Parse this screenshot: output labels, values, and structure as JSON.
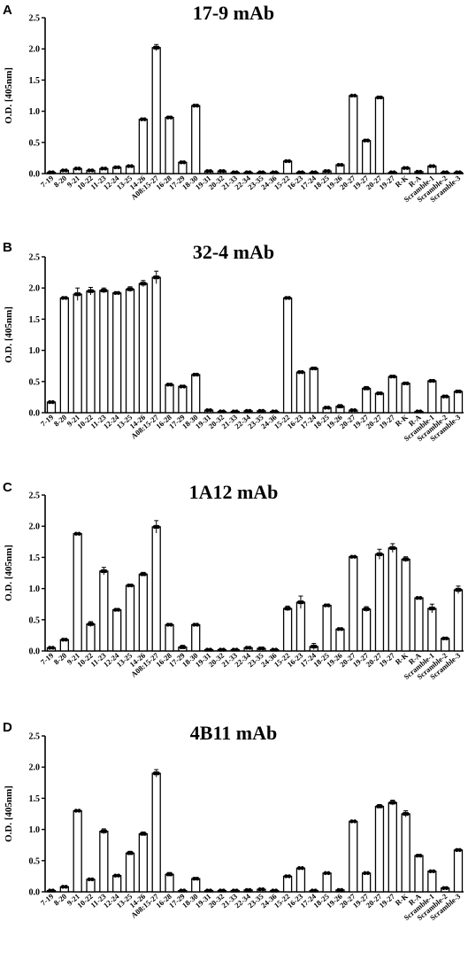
{
  "chart_data": [
    {
      "type": "bar",
      "panel": "A",
      "title": "17-9 mAb",
      "ylabel": "O.D. [405nm]",
      "ylim": [
        0,
        2.5
      ],
      "yticks": [
        "0.0",
        "0.5",
        "1.0",
        "1.5",
        "2.0",
        "2.5"
      ],
      "categories": [
        "7-19",
        "8-20",
        "9-21",
        "10-22",
        "11-23",
        "12-24",
        "13-25",
        "14-26",
        "A08:15-27",
        "16-28",
        "17-29",
        "18-30",
        "19-31",
        "20-32",
        "21-33",
        "22-34",
        "23-35",
        "24-36",
        "15-22",
        "16-23",
        "17-24",
        "18-25",
        "19-26",
        "20-27",
        "19-27",
        "20-27",
        "19-27",
        "R-K",
        "R-A",
        "Scramble-1",
        "Scramble-2",
        "Scramble-3"
      ],
      "values": [
        0.02,
        0.05,
        0.08,
        0.05,
        0.08,
        0.1,
        0.12,
        0.87,
        2.02,
        0.9,
        0.18,
        1.09,
        0.04,
        0.04,
        0.02,
        0.02,
        0.02,
        0.02,
        0.2,
        0.02,
        0.02,
        0.04,
        0.14,
        1.25,
        0.53,
        1.22,
        0.02,
        0.09,
        0.03,
        0.12,
        0.02,
        0.02
      ],
      "errors": [
        0.01,
        0.01,
        0.01,
        0.01,
        0.01,
        0.01,
        0.01,
        0.02,
        0.05,
        0.02,
        0.02,
        0.02,
        0.01,
        0.01,
        0.01,
        0.01,
        0.01,
        0.01,
        0.01,
        0.01,
        0.01,
        0.01,
        0.01,
        0.01,
        0.02,
        0.02,
        0.01,
        0.01,
        0.01,
        0.01,
        0.01,
        0.01
      ],
      "grid": false,
      "legend": "none"
    },
    {
      "type": "bar",
      "panel": "B",
      "title": "32-4 mAb",
      "ylabel": "O.D. [405nm]",
      "ylim": [
        0,
        2.5
      ],
      "yticks": [
        "0.0",
        "0.5",
        "1.0",
        "1.5",
        "2.0",
        "2.5"
      ],
      "categories": [
        "7-19",
        "8-20",
        "9-21",
        "10-22",
        "11-23",
        "12-24",
        "13-25",
        "14-26",
        "A08:15-27",
        "16-28",
        "17-29",
        "18-30",
        "19-31",
        "20-32",
        "21-33",
        "22-34",
        "23-35",
        "24-36",
        "15-22",
        "16-23",
        "17-24",
        "18-25",
        "19-26",
        "20-27",
        "19-27",
        "20-27",
        "19-27",
        "R-K",
        "R-A",
        "Scramble-1",
        "Scramble-2",
        "Scramble-3"
      ],
      "values": [
        0.17,
        1.84,
        1.9,
        1.95,
        1.96,
        1.92,
        1.98,
        2.07,
        2.17,
        0.45,
        0.42,
        0.61,
        0.04,
        0.02,
        0.02,
        0.03,
        0.03,
        0.02,
        1.84,
        0.65,
        0.71,
        0.08,
        0.1,
        0.04,
        0.39,
        0.31,
        0.58,
        0.47,
        0.02,
        0.51,
        0.26,
        0.34
      ],
      "errors": [
        0.01,
        0.02,
        0.1,
        0.06,
        0.04,
        0.02,
        0.04,
        0.05,
        0.1,
        0.02,
        0.02,
        0.02,
        0.01,
        0.01,
        0.01,
        0.01,
        0.01,
        0.01,
        0.02,
        0.02,
        0.02,
        0.02,
        0.03,
        0.01,
        0.03,
        0.02,
        0.02,
        0.02,
        0.01,
        0.02,
        0.02,
        0.02
      ],
      "grid": false,
      "legend": "none"
    },
    {
      "type": "bar",
      "panel": "C",
      "title": "1A12 mAb",
      "ylabel": "O.D. [405nm]",
      "ylim": [
        0,
        2.5
      ],
      "yticks": [
        "0.0",
        "0.5",
        "1.0",
        "1.5",
        "2.0",
        "2.5"
      ],
      "categories": [
        "7-19",
        "8-20",
        "9-21",
        "10-22",
        "11-23",
        "12-24",
        "13-25",
        "14-26",
        "A08:15-27",
        "16-28",
        "17-29",
        "18-30",
        "19-31",
        "20-32",
        "21-33",
        "22-34",
        "23-35",
        "24-36",
        "15-22",
        "16-23",
        "17-24",
        "18-25",
        "19-26",
        "20-27",
        "19-27",
        "20-27",
        "19-27",
        "R-K",
        "R-A",
        "Scramble-1",
        "Scramble-2",
        "Scramble-3"
      ],
      "values": [
        0.05,
        0.18,
        1.88,
        0.43,
        1.28,
        0.66,
        1.05,
        1.23,
        1.99,
        0.42,
        0.06,
        0.42,
        0.02,
        0.02,
        0.02,
        0.05,
        0.04,
        0.02,
        0.68,
        0.78,
        0.07,
        0.73,
        0.35,
        1.51,
        0.67,
        1.55,
        1.65,
        1.47,
        0.85,
        0.68,
        0.2,
        0.98
      ],
      "errors": [
        0.01,
        0.02,
        0.01,
        0.04,
        0.06,
        0.02,
        0.02,
        0.03,
        0.1,
        0.02,
        0.03,
        0.02,
        0.01,
        0.01,
        0.01,
        0.02,
        0.02,
        0.01,
        0.04,
        0.1,
        0.05,
        0.02,
        0.02,
        0.01,
        0.04,
        0.08,
        0.07,
        0.04,
        0.01,
        0.07,
        0.02,
        0.06
      ],
      "grid": false,
      "legend": "none"
    },
    {
      "type": "bar",
      "panel": "D",
      "title": "4B11 mAb",
      "ylabel": "O.D. [405nm]",
      "ylim": [
        0,
        2.5
      ],
      "yticks": [
        "0.0",
        "0.5",
        "1.0",
        "1.5",
        "2.0",
        "2.5"
      ],
      "categories": [
        "7-19",
        "8-20",
        "9-21",
        "10-22",
        "11-23",
        "12-24",
        "13-25",
        "14-26",
        "A08:15-27",
        "16-28",
        "17-29",
        "18-30",
        "19-31",
        "20-32",
        "21-33",
        "22-34",
        "23-35",
        "24-36",
        "15-22",
        "16-23",
        "17-24",
        "18-25",
        "19-26",
        "20-27",
        "19-27",
        "20-27",
        "19-27",
        "R-K",
        "R-A",
        "Scramble-1",
        "Scramble-2",
        "Scramble-3"
      ],
      "values": [
        0.02,
        0.08,
        1.3,
        0.2,
        0.97,
        0.26,
        0.62,
        0.93,
        1.9,
        0.28,
        0.02,
        0.21,
        0.02,
        0.02,
        0.02,
        0.03,
        0.04,
        0.02,
        0.25,
        0.38,
        0.02,
        0.3,
        0.03,
        1.13,
        0.3,
        1.37,
        1.43,
        1.25,
        0.58,
        0.33,
        0.06,
        0.67
      ],
      "errors": [
        0.01,
        0.01,
        0.01,
        0.01,
        0.04,
        0.01,
        0.03,
        0.03,
        0.06,
        0.03,
        0.01,
        0.02,
        0.01,
        0.01,
        0.01,
        0.01,
        0.01,
        0.01,
        0.01,
        0.01,
        0.01,
        0.01,
        0.01,
        0.01,
        0.01,
        0.03,
        0.04,
        0.05,
        0.02,
        0.01,
        0.02,
        0.02
      ],
      "grid": false,
      "legend": "none"
    }
  ]
}
